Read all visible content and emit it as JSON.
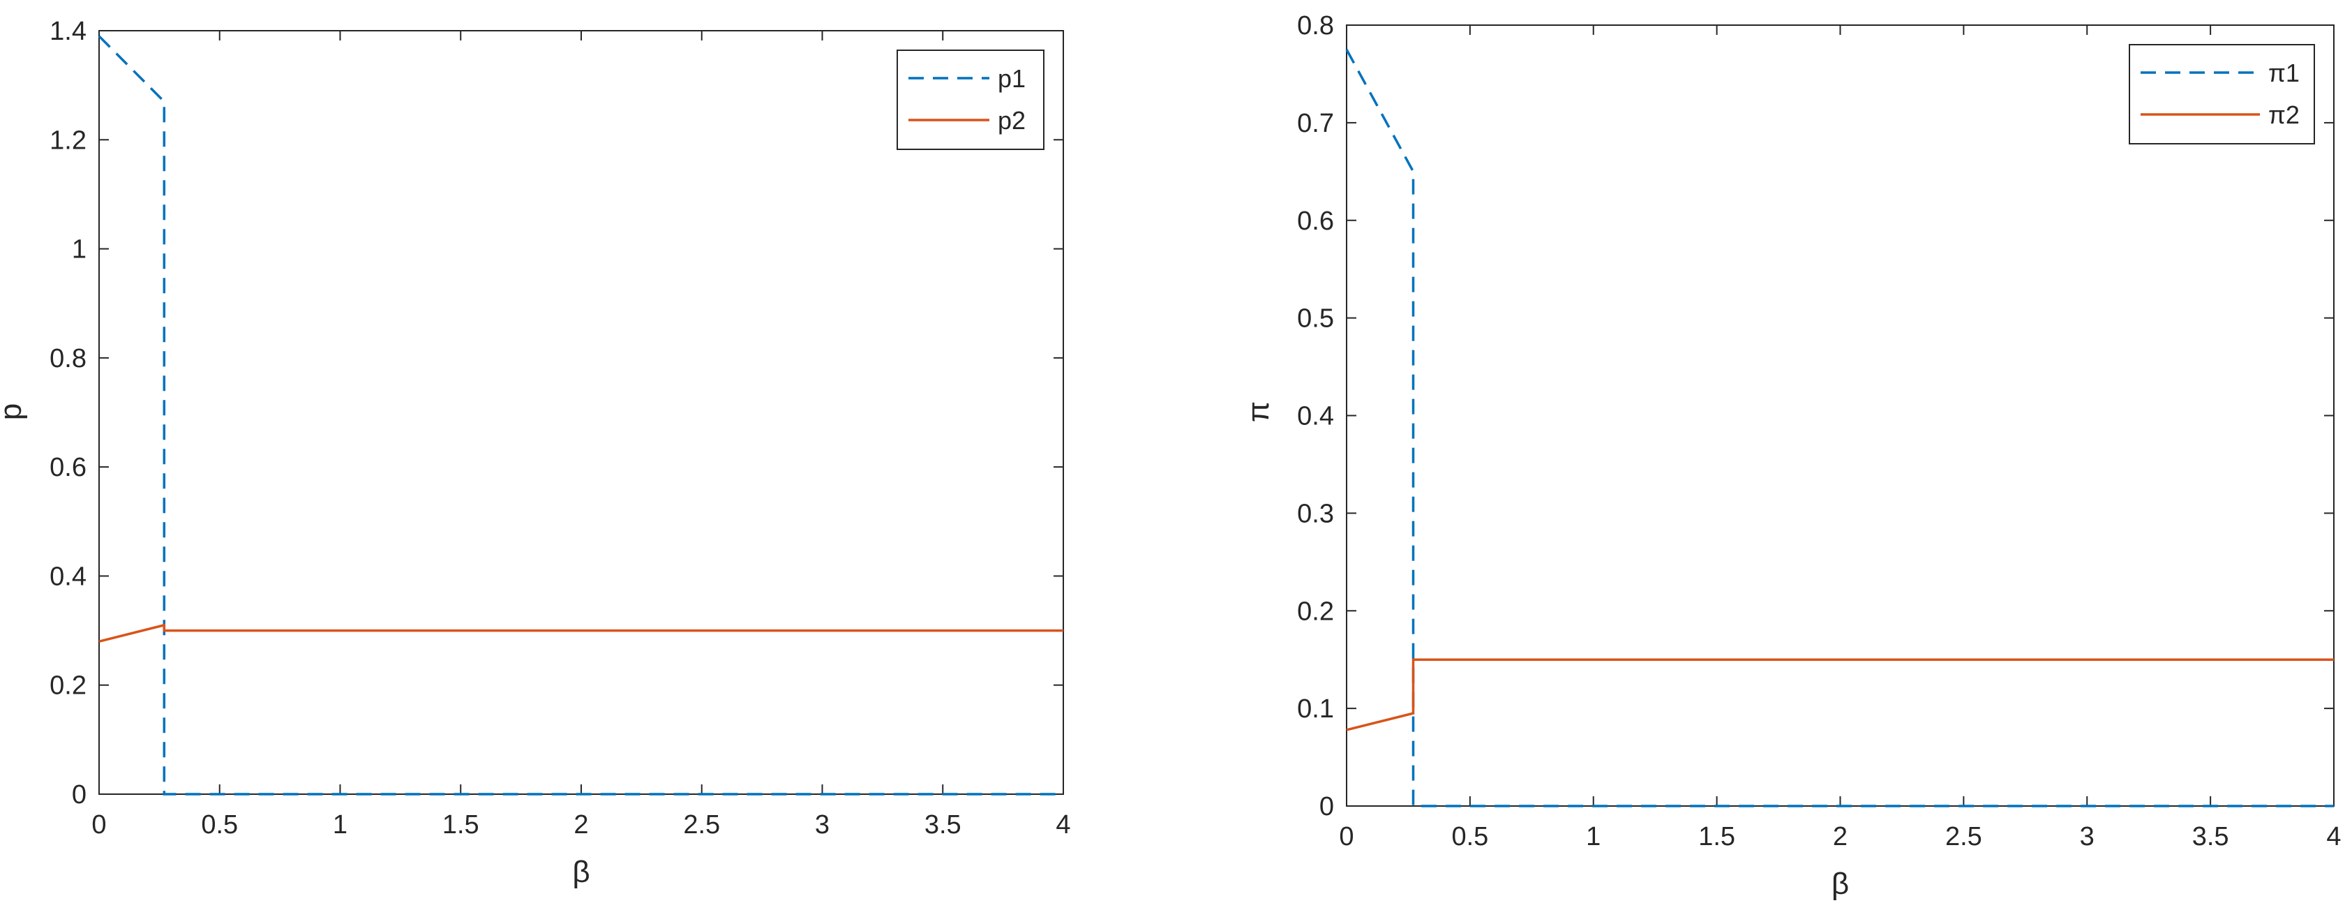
{
  "colors": {
    "series1": "#0072BD",
    "series2": "#D95319",
    "axis": "#262626",
    "background": "#ffffff"
  },
  "chart_data": [
    {
      "type": "line",
      "xlabel": "β",
      "ylabel": "p",
      "xlim": [
        0,
        4
      ],
      "ylim": [
        0,
        1.4
      ],
      "xticks": [
        0,
        0.5,
        1,
        1.5,
        2,
        2.5,
        3,
        3.5,
        4
      ],
      "xtick_labels": [
        "0",
        "0.5",
        "1",
        "1.5",
        "2",
        "2.5",
        "3",
        "3.5",
        "4"
      ],
      "yticks": [
        0,
        0.2,
        0.4,
        0.6,
        0.8,
        1,
        1.2,
        1.4
      ],
      "ytick_labels": [
        "0",
        "0.2",
        "0.4",
        "0.6",
        "0.8",
        "1",
        "1.2",
        "1.4"
      ],
      "grid": false,
      "legend_position": "top-right",
      "series": [
        {
          "name": "p1",
          "line_style": "dashed",
          "color": "#0072BD",
          "x": [
            0,
            0.27,
            0.27,
            4
          ],
          "y": [
            1.39,
            1.27,
            0,
            0
          ]
        },
        {
          "name": "p2",
          "line_style": "solid",
          "color": "#D95319",
          "x": [
            0,
            0.27,
            0.27,
            4
          ],
          "y": [
            0.28,
            0.31,
            0.3,
            0.3
          ]
        }
      ]
    },
    {
      "type": "line",
      "xlabel": "β",
      "ylabel": "π",
      "xlim": [
        0,
        4
      ],
      "ylim": [
        0,
        0.8
      ],
      "xticks": [
        0,
        0.5,
        1,
        1.5,
        2,
        2.5,
        3,
        3.5,
        4
      ],
      "xtick_labels": [
        "0",
        "0.5",
        "1",
        "1.5",
        "2",
        "2.5",
        "3",
        "3.5",
        "4"
      ],
      "yticks": [
        0,
        0.1,
        0.2,
        0.3,
        0.4,
        0.5,
        0.6,
        0.7,
        0.8
      ],
      "ytick_labels": [
        "0",
        "0.1",
        "0.2",
        "0.3",
        "0.4",
        "0.5",
        "0.6",
        "0.7",
        "0.8"
      ],
      "grid": false,
      "legend_position": "top-right",
      "series": [
        {
          "name": "π1",
          "line_style": "dashed",
          "color": "#0072BD",
          "x": [
            0,
            0.27,
            0.27,
            4
          ],
          "y": [
            0.775,
            0.65,
            0,
            0
          ]
        },
        {
          "name": "π2",
          "line_style": "solid",
          "color": "#D95319",
          "x": [
            0,
            0.27,
            0.27,
            4
          ],
          "y": [
            0.078,
            0.095,
            0.15,
            0.15
          ]
        }
      ]
    }
  ]
}
